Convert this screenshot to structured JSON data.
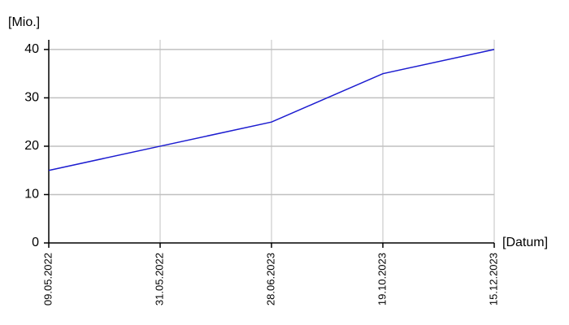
{
  "chart_data": {
    "type": "line",
    "y_label": "[Mio.]",
    "x_label": "[Datum]",
    "categories": [
      "09.05.2022",
      "31.05.2022",
      "28.06.2023",
      "19.10.2023",
      "15.12.2023"
    ],
    "series": [
      {
        "color": "#1c1cd0",
        "values": [
          15,
          20,
          25,
          35,
          40
        ]
      }
    ],
    "ylim": [
      0,
      42
    ],
    "yticks": [
      0,
      10,
      20,
      30,
      40
    ],
    "grid": true
  }
}
